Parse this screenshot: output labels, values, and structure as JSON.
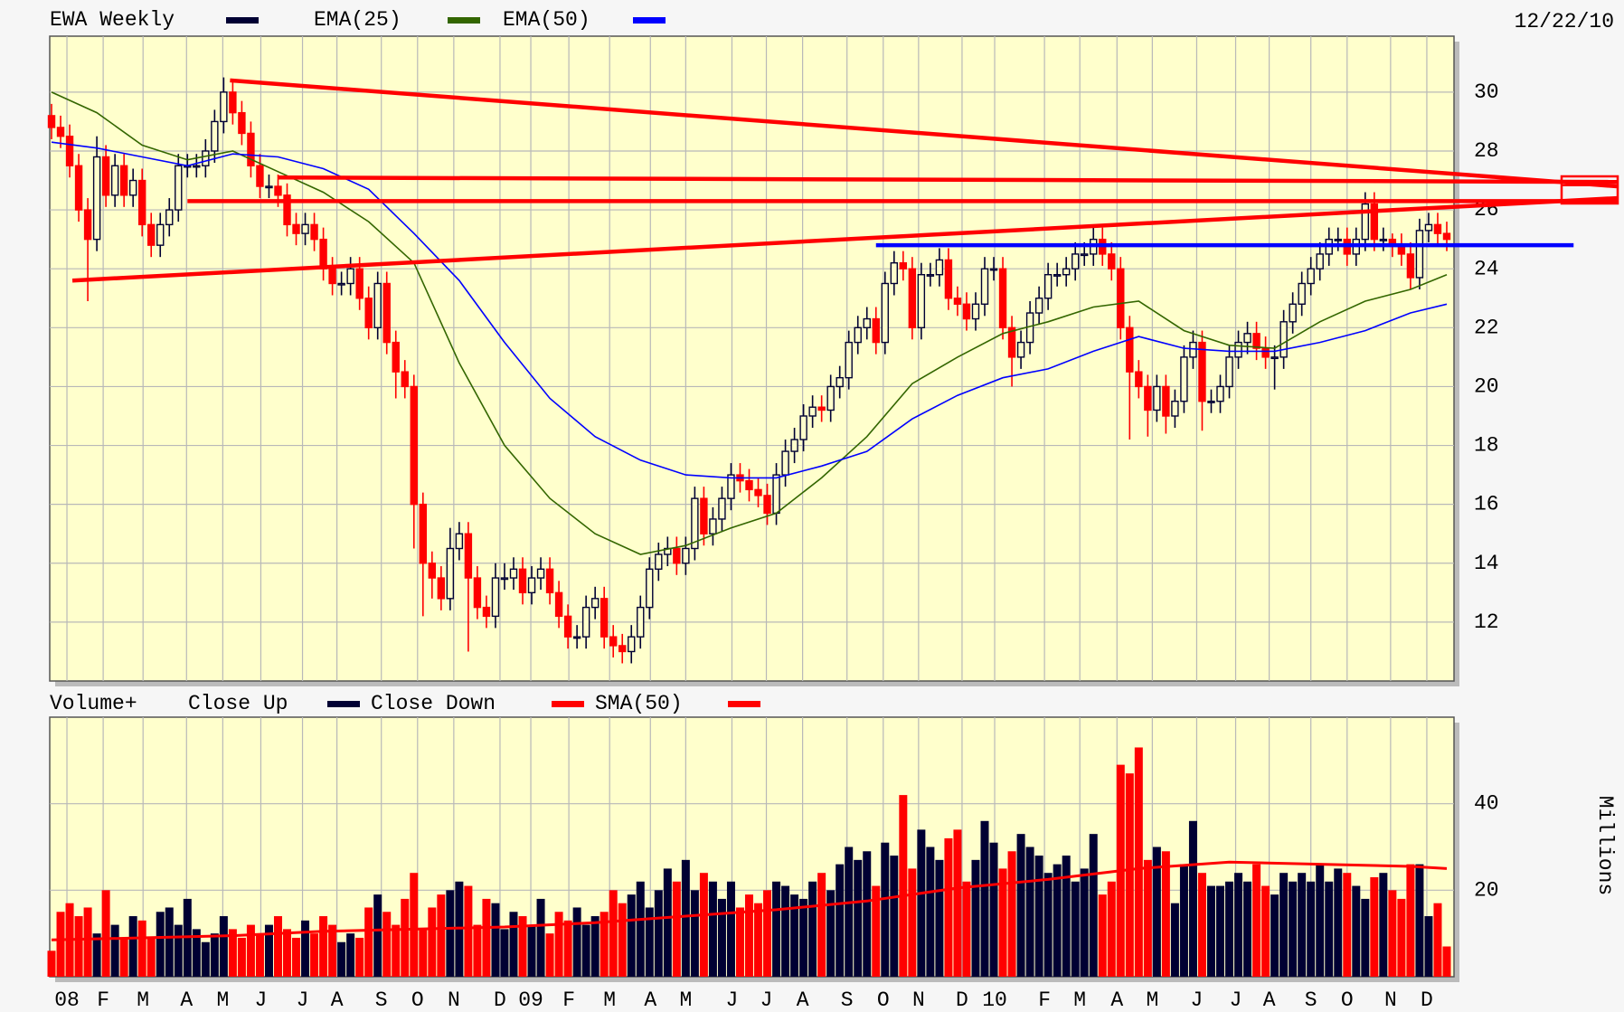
{
  "chart_data": {
    "type": "candlestick",
    "title": "EWA Weekly",
    "date": "12/22/10",
    "candle_color": "#000033",
    "down_color": "#ff0000",
    "open": [
      29.2,
      28.8,
      28.5,
      27.5,
      26,
      25,
      27.8,
      26.5,
      27.5,
      26.5,
      27,
      25.5,
      24.8,
      25.5,
      26,
      27.5,
      27.5,
      27.5,
      28,
      29,
      30,
      29.3,
      28.6,
      27.5,
      26.8,
      26.8,
      26.5,
      25.5,
      25.2,
      25.5,
      25,
      24,
      23.5,
      23.5,
      24,
      23,
      22,
      23.5,
      21.5,
      20.5,
      20,
      16,
      14,
      13.5,
      12.8,
      14.5,
      15,
      13.5,
      12.5,
      12.2,
      13.5,
      13.5,
      13.8,
      13,
      13.5,
      13.8,
      13,
      12.2,
      11.5,
      11.5,
      12.5,
      12.8,
      11.5,
      11.2,
      11,
      11.5,
      12.5,
      13.8,
      14.3,
      14.5,
      14,
      14.5,
      16.2,
      15,
      15.5,
      16.2,
      17,
      16.8,
      16.5,
      16.3,
      15.7,
      17,
      17.8,
      18.2,
      19,
      19.3,
      19.2,
      20,
      20.3,
      21.5,
      22,
      22.3,
      21.5,
      23.5,
      24.2,
      24,
      22,
      23.8,
      23.8,
      24.3,
      23,
      22.8,
      22.3,
      22.8,
      24,
      24,
      22,
      21,
      21.5,
      22.5,
      23,
      23.8,
      23.8,
      24,
      24.5,
      24.5,
      25,
      24.5,
      24,
      22,
      20.5,
      20,
      19.2,
      20,
      19,
      19.5,
      21,
      21.5,
      19.5,
      19.5,
      20,
      21,
      21.5,
      21.8,
      21.3,
      21,
      21,
      22.2,
      22.8,
      23.5,
      24,
      24.5,
      25,
      25,
      24.5,
      25,
      26.2,
      25,
      25,
      24.8,
      24.5,
      23.7,
      25.3,
      25.5,
      25.2
    ],
    "high": [
      29.6,
      29.2,
      28.9,
      27.9,
      26.4,
      28.5,
      28.2,
      27.9,
      27.9,
      27.4,
      27.4,
      25.9,
      25.9,
      26.4,
      27.9,
      27.9,
      27.9,
      28.4,
      29.4,
      30.5,
      30.4,
      29.7,
      29,
      27.9,
      27.2,
      27.2,
      26.9,
      25.9,
      25.9,
      25.9,
      25.4,
      24.4,
      23.9,
      24.4,
      24.4,
      23.4,
      23.9,
      23.9,
      21.9,
      20.9,
      20.4,
      16.4,
      14.4,
      13.9,
      15.2,
      15.4,
      15.4,
      13.9,
      12.9,
      14,
      14,
      14.2,
      14.2,
      13.9,
      14.2,
      14.2,
      13.4,
      12.6,
      11.9,
      12.9,
      13.2,
      13.2,
      11.9,
      11.6,
      11.9,
      12.9,
      14.2,
      14.7,
      14.9,
      14.9,
      14.9,
      16.6,
      16.6,
      15.9,
      16.6,
      17.4,
      17.4,
      17.2,
      16.9,
      16.7,
      17.4,
      18.2,
      18.6,
      19.4,
      19.7,
      19.7,
      20.4,
      20.7,
      21.9,
      22.4,
      22.7,
      22.7,
      23.9,
      24.6,
      24.6,
      24.4,
      24.2,
      24.2,
      24.7,
      24.7,
      23.4,
      23.2,
      23.2,
      24.4,
      24.4,
      24.4,
      22.4,
      21.9,
      22.9,
      23.4,
      24.2,
      24.2,
      24.4,
      24.9,
      24.9,
      25.4,
      25.4,
      24.9,
      24.4,
      22.4,
      20.9,
      20.4,
      20.4,
      20.4,
      19.9,
      21.4,
      21.9,
      21.9,
      19.9,
      20.4,
      21.4,
      21.9,
      22.2,
      22.2,
      21.7,
      21.4,
      22.6,
      23.2,
      23.9,
      24.4,
      24.9,
      25.4,
      25.4,
      25.4,
      25.4,
      26.6,
      26.6,
      25.4,
      25.2,
      25.2,
      24.9,
      25.7,
      25.9,
      25.9,
      25.6
    ],
    "low": [
      28.4,
      28.1,
      27.1,
      25.6,
      22.9,
      24.6,
      26.1,
      26.1,
      26.1,
      26.1,
      25.1,
      24.4,
      24.4,
      25.1,
      25.6,
      27.1,
      27.1,
      27.1,
      27.6,
      28.6,
      28.9,
      28.2,
      27.1,
      26.4,
      26.4,
      26.1,
      25.1,
      24.8,
      24.8,
      24.6,
      23.6,
      23.1,
      23.1,
      23.1,
      22.6,
      21.6,
      21.6,
      21.1,
      19.6,
      19.6,
      14.5,
      12.2,
      12.8,
      12.4,
      12.4,
      14.1,
      11,
      12.1,
      11.8,
      11.8,
      13.1,
      13.1,
      12.6,
      12.6,
      13.1,
      12.6,
      11.8,
      11.1,
      11.1,
      11.1,
      12.1,
      11.1,
      10.8,
      10.6,
      10.6,
      11.1,
      12.1,
      13.4,
      13.9,
      13.6,
      13.6,
      14.1,
      14.6,
      14.6,
      15.1,
      15.8,
      16.4,
      16.1,
      15.9,
      15.3,
      15.3,
      16.6,
      17.4,
      17.8,
      18.6,
      18.8,
      18.8,
      19.6,
      19.9,
      21.1,
      21.6,
      21.1,
      21.1,
      23.1,
      23.6,
      21.6,
      21.6,
      23.4,
      23.4,
      22.6,
      22.4,
      21.9,
      21.9,
      22.4,
      23.6,
      21.6,
      20,
      20.6,
      21.1,
      22.1,
      22.6,
      23.4,
      23.4,
      23.6,
      24.1,
      24.1,
      24.1,
      23.6,
      21.6,
      18.2,
      19.6,
      18.3,
      18.8,
      18.4,
      18.6,
      19.1,
      20.6,
      18.5,
      19.1,
      19.1,
      19.6,
      20.6,
      21.1,
      20.9,
      20.6,
      19.9,
      20.6,
      21.8,
      22.4,
      23.1,
      23.6,
      24.1,
      24.6,
      24.1,
      24.1,
      24.6,
      24.6,
      24.6,
      24.4,
      24.1,
      23.3,
      23.3,
      24.9,
      24.8,
      24.6
    ],
    "close": [
      28.8,
      28.5,
      27.5,
      26,
      25,
      27.8,
      26.5,
      27.5,
      26.5,
      27,
      25.5,
      24.8,
      25.5,
      26,
      27.5,
      27.5,
      27.5,
      28,
      29,
      30,
      29.3,
      28.6,
      27.5,
      26.8,
      26.8,
      26.5,
      25.5,
      25.2,
      25.5,
      25,
      24,
      23.5,
      23.5,
      24,
      23,
      22,
      23.5,
      21.5,
      20.5,
      20,
      16,
      14,
      13.5,
      12.8,
      14.5,
      15,
      13.5,
      12.5,
      12.2,
      13.5,
      13.5,
      13.8,
      13,
      13.5,
      13.8,
      13,
      12.2,
      11.5,
      11.5,
      12.5,
      12.8,
      11.5,
      11.2,
      11,
      11.5,
      12.5,
      13.8,
      14.3,
      14.5,
      14,
      14.5,
      16.2,
      15,
      15.5,
      16.2,
      17,
      16.8,
      16.5,
      16.3,
      15.7,
      17,
      17.8,
      18.2,
      19,
      19.3,
      19.2,
      20,
      20.3,
      21.5,
      22,
      22.3,
      21.5,
      23.5,
      24.2,
      24,
      22,
      23.8,
      23.8,
      24.3,
      23,
      22.8,
      22.3,
      22.8,
      24,
      24,
      22,
      21,
      21.5,
      22.5,
      23,
      23.8,
      23.8,
      24,
      24.5,
      24.5,
      25,
      24.5,
      24,
      22,
      20.5,
      20,
      19.2,
      20,
      19,
      19.5,
      21,
      21.5,
      19.5,
      19.5,
      20,
      21,
      21.5,
      21.8,
      21.3,
      21,
      21,
      22.2,
      22.8,
      23.5,
      24,
      24.5,
      25,
      25,
      24.5,
      25,
      26.2,
      25,
      25,
      24.8,
      24.5,
      23.7,
      25.3,
      25.5,
      25.2,
      25
    ],
    "series": [
      {
        "name": "EMA(25)",
        "color": "#336600",
        "x": [
          0,
          5,
          10,
          15,
          20,
          25,
          30,
          35,
          40,
          45,
          50,
          55,
          60,
          65,
          70,
          75,
          80,
          85,
          90,
          95,
          100,
          105,
          110,
          115,
          120,
          125,
          130,
          135,
          140,
          145,
          150,
          154
        ],
        "values": [
          30,
          29.3,
          28.2,
          27.7,
          28,
          27.3,
          26.6,
          25.6,
          24.2,
          20.8,
          18,
          16.2,
          15,
          14.3,
          14.6,
          15.2,
          15.7,
          16.9,
          18.3,
          20.1,
          21,
          21.8,
          22.2,
          22.7,
          22.9,
          21.9,
          21.4,
          21.3,
          22.2,
          22.9,
          23.3,
          23.8
        ]
      },
      {
        "name": "EMA(50)",
        "color": "#0000ff",
        "x": [
          0,
          5,
          10,
          15,
          20,
          25,
          30,
          35,
          40,
          45,
          50,
          55,
          60,
          65,
          70,
          75,
          80,
          85,
          90,
          95,
          100,
          105,
          110,
          115,
          120,
          125,
          130,
          135,
          140,
          145,
          150,
          154
        ],
        "values": [
          28.3,
          28.1,
          27.8,
          27.5,
          27.9,
          27.8,
          27.4,
          26.7,
          25.2,
          23.6,
          21.5,
          19.6,
          18.3,
          17.5,
          17,
          16.9,
          16.9,
          17.3,
          17.8,
          18.9,
          19.7,
          20.3,
          20.6,
          21.2,
          21.7,
          21.3,
          21.2,
          21.2,
          21.5,
          21.9,
          22.5,
          22.8
        ]
      }
    ],
    "trendlines": [
      {
        "color": "#ff0000",
        "x": [
          19.7,
          172.8
        ],
        "values": [
          30.4,
          26.8
        ]
      },
      {
        "color": "#ff0000",
        "x": [
          15,
          172.8
        ],
        "values": [
          26.3,
          26.3
        ]
      },
      {
        "color": "#ff0000",
        "x": [
          25,
          172.8
        ],
        "values": [
          27.1,
          26.95
        ]
      },
      {
        "color": "#ff0000",
        "x": [
          2.3,
          172.8
        ],
        "values": [
          23.6,
          26.4
        ]
      },
      {
        "color": "#0000ff",
        "x": [
          91,
          168
        ],
        "values": [
          24.8,
          24.8
        ]
      }
    ],
    "xlim": [
      -0.2,
      154.8
    ],
    "ylim": [
      10,
      31.9
    ],
    "yticks": [
      12,
      14,
      16,
      18,
      20,
      22,
      24,
      26,
      28,
      30
    ],
    "xticks": [
      {
        "value": 1.7,
        "label": "08"
      },
      {
        "value": 5.7,
        "label": "F"
      },
      {
        "value": 10.1,
        "label": "M"
      },
      {
        "value": 14.9,
        "label": "A"
      },
      {
        "value": 18.9,
        "label": "M"
      },
      {
        "value": 23.1,
        "label": "J"
      },
      {
        "value": 27.7,
        "label": "J"
      },
      {
        "value": 31.5,
        "label": "A"
      },
      {
        "value": 36.4,
        "label": "S"
      },
      {
        "value": 40.4,
        "label": "O"
      },
      {
        "value": 44.4,
        "label": "N"
      },
      {
        "value": 49.5,
        "label": "D"
      },
      {
        "value": 52.9,
        "label": "09"
      },
      {
        "value": 57.1,
        "label": "F"
      },
      {
        "value": 61.6,
        "label": "M"
      },
      {
        "value": 66.1,
        "label": "A"
      },
      {
        "value": 70,
        "label": "M"
      },
      {
        "value": 75.1,
        "label": "J"
      },
      {
        "value": 78.9,
        "label": "J"
      },
      {
        "value": 82.9,
        "label": "A"
      },
      {
        "value": 87.8,
        "label": "S"
      },
      {
        "value": 91.8,
        "label": "O"
      },
      {
        "value": 95.7,
        "label": "N"
      },
      {
        "value": 100.5,
        "label": "D"
      },
      {
        "value": 104.1,
        "label": "10"
      },
      {
        "value": 109.6,
        "label": "F"
      },
      {
        "value": 113.5,
        "label": "M"
      },
      {
        "value": 117.6,
        "label": "A"
      },
      {
        "value": 121.5,
        "label": "M"
      },
      {
        "value": 126.4,
        "label": "J"
      },
      {
        "value": 130.7,
        "label": "J"
      },
      {
        "value": 134.4,
        "label": "A"
      },
      {
        "value": 139,
        "label": "S"
      },
      {
        "value": 143,
        "label": "O"
      },
      {
        "value": 147.8,
        "label": "N"
      },
      {
        "value": 151.8,
        "label": "D"
      }
    ],
    "grid": true,
    "volume": {
      "type": "bar",
      "title": "Volume+",
      "up_name": "Close Up",
      "down_name": "Close Down",
      "ylabel": "Millions",
      "values": [
        6,
        15,
        17,
        14,
        16,
        10,
        20,
        12,
        9,
        14,
        13,
        9,
        15,
        16,
        12,
        18,
        11,
        8,
        10,
        14,
        11,
        9,
        12,
        10,
        12,
        14,
        11,
        9,
        13,
        10,
        14,
        12,
        8,
        10,
        9,
        16,
        19,
        15,
        12,
        18,
        24,
        11,
        16,
        19,
        20,
        22,
        21,
        12,
        18,
        17,
        11,
        15,
        14,
        12,
        18,
        10,
        15,
        13,
        16,
        12,
        14,
        15,
        20,
        17,
        19,
        22,
        16,
        20,
        25,
        22,
        27,
        20,
        24,
        22,
        18,
        22,
        16,
        19,
        17,
        20,
        22,
        21,
        19,
        18,
        22,
        24,
        20,
        26,
        30,
        27,
        29,
        21,
        31,
        28,
        42,
        25,
        34,
        30,
        27,
        32,
        34,
        22,
        27,
        36,
        31,
        25,
        29,
        33,
        30,
        28,
        24,
        26,
        28,
        22,
        25,
        33,
        19,
        22,
        49,
        47,
        53,
        27,
        30,
        29,
        17,
        26,
        36,
        24,
        21,
        21,
        22,
        24,
        22,
        26,
        21,
        19,
        24,
        22,
        24,
        22,
        26,
        22,
        25,
        24,
        21,
        18,
        23,
        24,
        20,
        18,
        26,
        26,
        14,
        17,
        7
      ],
      "ylim": [
        0,
        60
      ],
      "yticks": [
        20,
        40
      ],
      "series": [
        {
          "name": "SMA(50)",
          "color": "#ff0000",
          "x": [
            0,
            10,
            20,
            30,
            40,
            50,
            60,
            70,
            80,
            90,
            100,
            110,
            120,
            130,
            140,
            150,
            154
          ],
          "values": [
            8.5,
            9,
            9.5,
            10.5,
            11,
            11.5,
            12.5,
            14,
            15.5,
            17.5,
            20.5,
            22.5,
            25,
            26.5,
            26,
            25.5,
            25
          ]
        }
      ]
    }
  }
}
